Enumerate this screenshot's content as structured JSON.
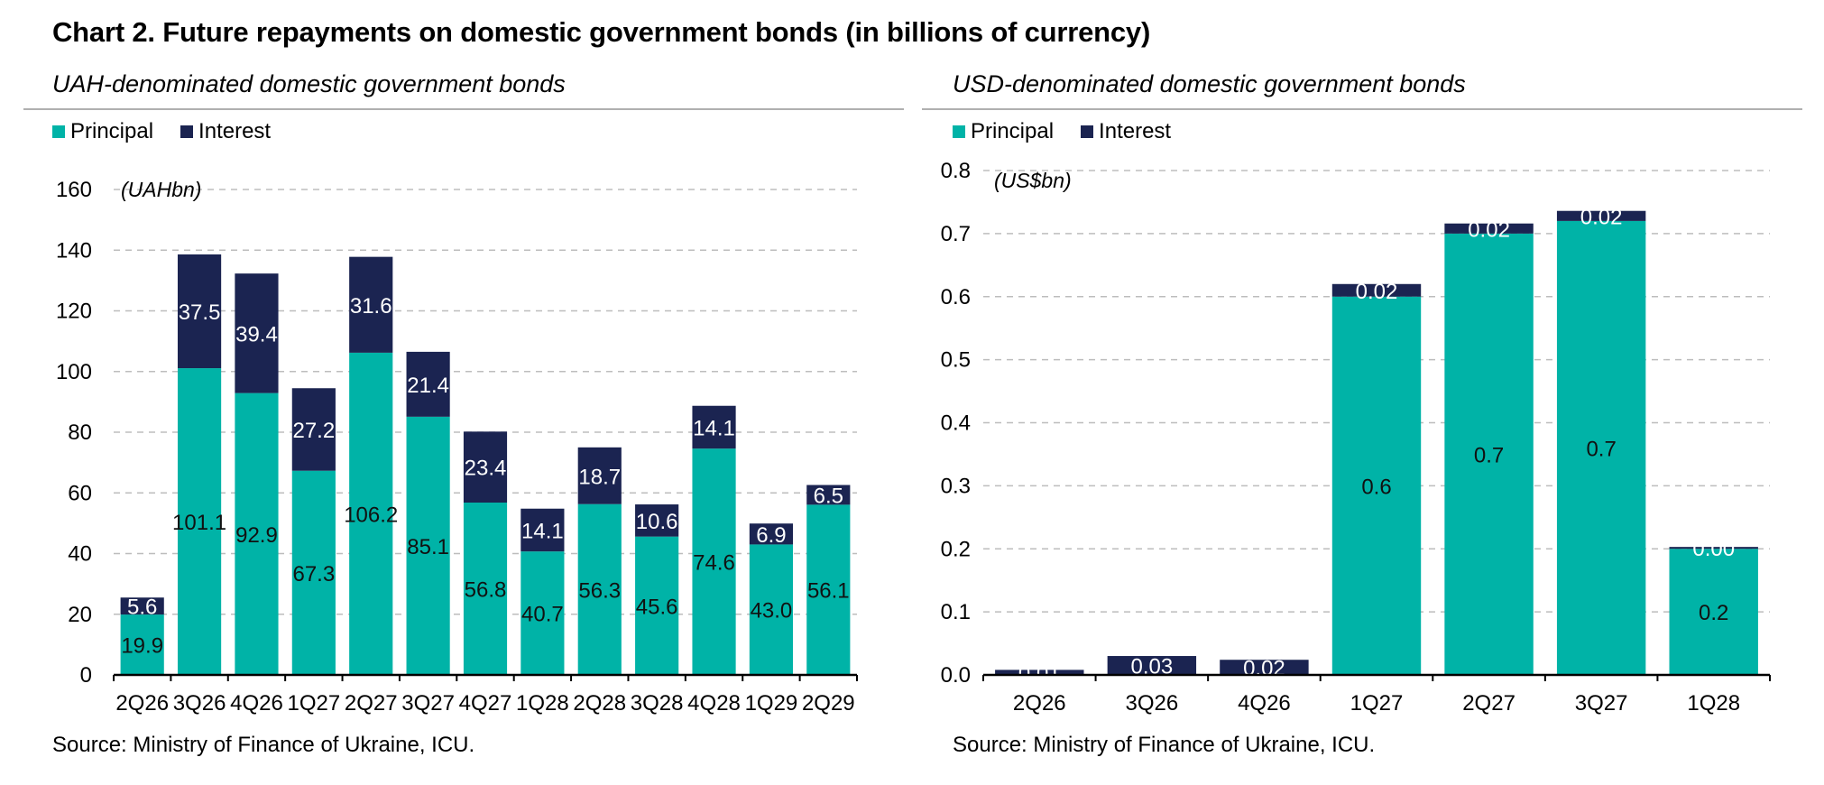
{
  "title": "Chart 2. Future repayments on domestic government bonds (in billions of currency)",
  "colors": {
    "principal": "#00b3a7",
    "interest": "#1b2451",
    "grid": "#bdbdbd",
    "rule": "#b0b0b0"
  },
  "chart_data": [
    {
      "type": "bar",
      "stacked": true,
      "subtitle": "UAH-denominated domestic government bonds",
      "unit_label": "(UAHbn)",
      "source": "Source: Ministry of Finance of Ukraine, ICU.",
      "legend": [
        "Principal",
        "Interest"
      ],
      "categories": [
        "2Q26",
        "3Q26",
        "4Q26",
        "1Q27",
        "2Q27",
        "3Q27",
        "4Q27",
        "1Q28",
        "2Q28",
        "3Q28",
        "4Q28",
        "1Q29",
        "2Q29"
      ],
      "series": [
        {
          "name": "Principal",
          "values": [
            19.9,
            101.1,
            92.9,
            67.3,
            106.2,
            85.1,
            56.8,
            40.7,
            56.3,
            45.6,
            74.6,
            43.0,
            56.1
          ],
          "labels": [
            "19.9",
            "101.1",
            "92.9",
            "67.3",
            "106.2",
            "85.1",
            "56.8",
            "40.7",
            "56.3",
            "45.6",
            "74.6",
            "43.0",
            "56.1"
          ]
        },
        {
          "name": "Interest",
          "values": [
            5.6,
            37.5,
            39.4,
            27.2,
            31.6,
            21.4,
            23.4,
            14.1,
            18.7,
            10.6,
            14.1,
            6.9,
            6.5
          ],
          "labels": [
            "5.6",
            "37.5",
            "39.4",
            "27.2",
            "31.6",
            "21.4",
            "23.4",
            "14.1",
            "18.7",
            "10.6",
            "14.1",
            "6.9",
            "6.5"
          ]
        }
      ],
      "ylim": [
        0,
        160
      ],
      "yticks": [
        "0",
        "20",
        "40",
        "60",
        "80",
        "100",
        "120",
        "140",
        "160"
      ],
      "grid": true,
      "legend_position": "top-left"
    },
    {
      "type": "bar",
      "stacked": true,
      "subtitle": "USD-denominated domestic government bonds",
      "unit_label": "(US$bn)",
      "source": "Source: Ministry of Finance of Ukraine, ICU.",
      "legend": [
        "Principal",
        "Interest"
      ],
      "categories": [
        "2Q26",
        "3Q26",
        "4Q26",
        "1Q27",
        "2Q27",
        "3Q27",
        "1Q28"
      ],
      "series": [
        {
          "name": "Principal",
          "values": [
            0.0,
            0.0,
            0.0,
            0.6,
            0.7,
            0.72,
            0.2
          ],
          "labels": [
            "",
            "",
            "",
            "0.6",
            "0.7",
            "0.7",
            "0.2"
          ]
        },
        {
          "name": "Interest",
          "values": [
            0.008,
            0.03,
            0.024,
            0.02,
            0.016,
            0.016,
            0.003
          ],
          "labels": [
            "0.01",
            "0.03",
            "0.02",
            "0.02",
            "0.02",
            "0.02",
            "0.00"
          ]
        }
      ],
      "ylim": [
        0,
        0.8
      ],
      "yticks": [
        "0.0",
        "0.1",
        "0.2",
        "0.3",
        "0.4",
        "0.5",
        "0.6",
        "0.7",
        "0.8"
      ],
      "grid": true,
      "legend_position": "top-left"
    }
  ]
}
